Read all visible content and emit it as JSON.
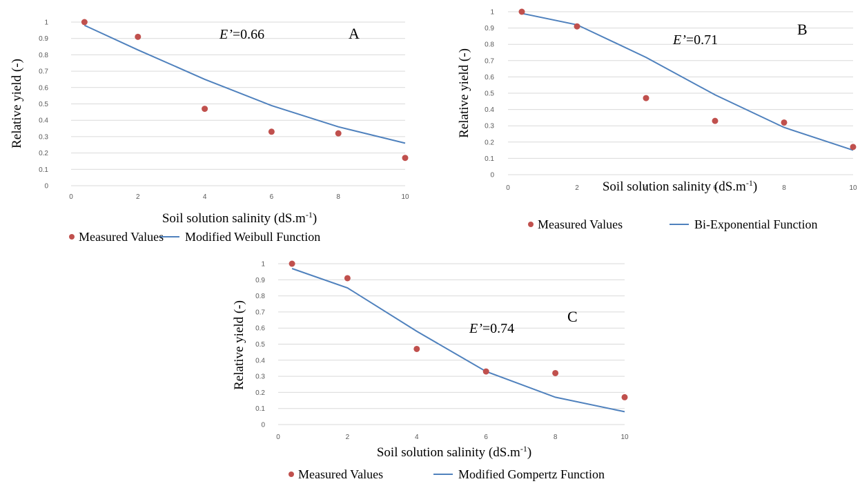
{
  "chart_data": [
    {
      "type": "scatter",
      "panel": "A",
      "annotation": {
        "symbol": "E’",
        "value": "=0.66"
      },
      "xlabel": "Soil solution salinity  (dS.m",
      "xlabel_sup": "-1",
      "xlabel_end": ")",
      "ylabel": "Relative yield (-)",
      "xlim": [
        0,
        10
      ],
      "ylim": [
        0,
        1
      ],
      "x_ticks": [
        "0",
        "2",
        "4",
        "6",
        "8",
        "10"
      ],
      "y_ticks": [
        "0",
        "0.1",
        "0.2",
        "0.3",
        "0.4",
        "0.5",
        "0.6",
        "0.7",
        "0.8",
        "0.9",
        "1"
      ],
      "grid": true,
      "legend_position": "bottom",
      "series": [
        {
          "name": "Measured Values",
          "kind": "points",
          "color": "#c0504d",
          "x": [
            0.4,
            2,
            4,
            6,
            8,
            10
          ],
          "y": [
            1.0,
            0.91,
            0.47,
            0.33,
            0.32,
            0.17
          ]
        },
        {
          "name": "Modified Weibull Function",
          "kind": "line",
          "color": "#4f81bd",
          "x": [
            0.4,
            2,
            4,
            6,
            8,
            10
          ],
          "y": [
            0.98,
            0.83,
            0.65,
            0.49,
            0.36,
            0.26
          ]
        }
      ]
    },
    {
      "type": "scatter",
      "panel": "B",
      "annotation": {
        "symbol": "E’",
        "value": "=0.71"
      },
      "xlabel": "Soil solution salinity  (dS.m",
      "xlabel_sup": "-1",
      "xlabel_end": ")",
      "ylabel": "Relative yield (-)",
      "xlim": [
        0,
        10
      ],
      "ylim": [
        0,
        1
      ],
      "x_ticks": [
        "0",
        "2",
        "4",
        "6",
        "8",
        "10"
      ],
      "y_ticks": [
        "0",
        "0.1",
        "0.2",
        "0.3",
        "0.4",
        "0.5",
        "0.6",
        "0.7",
        "0.8",
        "0.9",
        "1"
      ],
      "grid": true,
      "legend_position": "bottom",
      "series": [
        {
          "name": "Measured Values",
          "kind": "points",
          "color": "#c0504d",
          "x": [
            0.4,
            2,
            4,
            6,
            8,
            10
          ],
          "y": [
            1.0,
            0.91,
            0.47,
            0.33,
            0.32,
            0.17
          ]
        },
        {
          "name": "Bi-Exponential Function",
          "kind": "line",
          "color": "#4f81bd",
          "x": [
            0.4,
            2,
            4,
            6,
            8,
            10
          ],
          "y": [
            0.99,
            0.92,
            0.72,
            0.49,
            0.29,
            0.15
          ]
        }
      ]
    },
    {
      "type": "scatter",
      "panel": "C",
      "annotation": {
        "symbol": "E’",
        "value": "=0.74"
      },
      "xlabel": "Soil solution salinity  (dS.m",
      "xlabel_sup": "-1",
      "xlabel_end": ")",
      "ylabel": "Relative yield (-)",
      "xlim": [
        0,
        10
      ],
      "ylim": [
        0,
        1
      ],
      "x_ticks": [
        "0",
        "2",
        "4",
        "6",
        "8",
        "10"
      ],
      "y_ticks": [
        "0",
        "0.1",
        "0.2",
        "0.3",
        "0.4",
        "0.5",
        "0.6",
        "0.7",
        "0.8",
        "0.9",
        "1"
      ],
      "grid": true,
      "legend_position": "bottom",
      "series": [
        {
          "name": "Measured Values",
          "kind": "points",
          "color": "#c0504d",
          "x": [
            0.4,
            2,
            4,
            6,
            8,
            10
          ],
          "y": [
            1.0,
            0.91,
            0.47,
            0.33,
            0.32,
            0.17
          ]
        },
        {
          "name": "Modified Gompertz Function",
          "kind": "line",
          "color": "#4f81bd",
          "x": [
            0.4,
            2,
            4,
            6,
            8,
            10
          ],
          "y": [
            0.97,
            0.85,
            0.58,
            0.33,
            0.17,
            0.08
          ]
        }
      ]
    }
  ]
}
